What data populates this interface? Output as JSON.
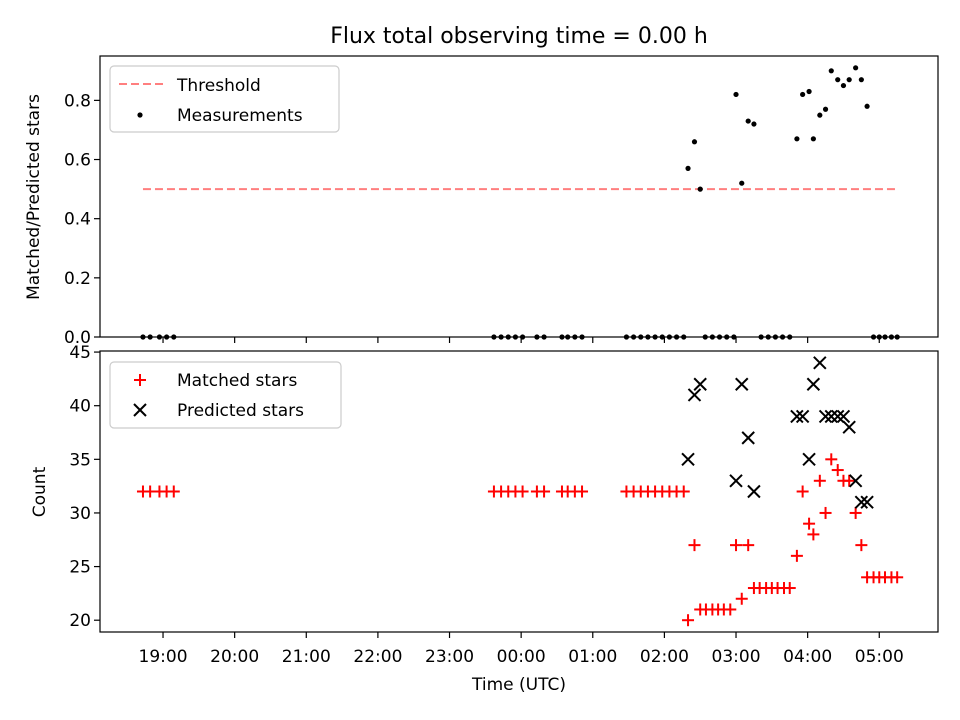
{
  "chart_data": [
    {
      "type": "scatter",
      "title": "Flux total observing time = 0.00 h",
      "xlabel": "",
      "ylabel": "Matched/Predicted stars",
      "xlim_hours": [
        18.12,
        29.82
      ],
      "ylim": [
        0,
        0.95
      ],
      "yticks": [
        0.0,
        0.2,
        0.4,
        0.6,
        0.8
      ],
      "ytick_labels": [
        "0.0",
        "0.2",
        "0.4",
        "0.6",
        "0.8"
      ],
      "grid": false,
      "legend_position": "top-left",
      "threshold": {
        "name": "Threshold",
        "color": "#ff7f7f",
        "style": "dashed",
        "y": 0.5,
        "x_range": [
          18.72,
          29.27
        ]
      },
      "series": [
        {
          "name": "Measurements",
          "color": "#000000",
          "marker": "dot",
          "points": [
            [
              18.72,
              0
            ],
            [
              18.82,
              0
            ],
            [
              18.95,
              0
            ],
            [
              19.05,
              0
            ],
            [
              19.15,
              0
            ],
            [
              23.62,
              0
            ],
            [
              23.72,
              0
            ],
            [
              23.82,
              0
            ],
            [
              23.92,
              0
            ],
            [
              24.02,
              0
            ],
            [
              24.22,
              0
            ],
            [
              24.32,
              0
            ],
            [
              24.57,
              0
            ],
            [
              24.65,
              0
            ],
            [
              24.75,
              0
            ],
            [
              24.85,
              0
            ],
            [
              25.47,
              0
            ],
            [
              25.57,
              0
            ],
            [
              25.67,
              0
            ],
            [
              25.77,
              0
            ],
            [
              25.87,
              0
            ],
            [
              25.97,
              0
            ],
            [
              26.07,
              0
            ],
            [
              26.17,
              0
            ],
            [
              26.27,
              0
            ],
            [
              26.33,
              0.57
            ],
            [
              26.42,
              0.66
            ],
            [
              26.5,
              0.5
            ],
            [
              26.57,
              0
            ],
            [
              26.67,
              0
            ],
            [
              26.77,
              0
            ],
            [
              26.87,
              0
            ],
            [
              26.97,
              0
            ],
            [
              27.0,
              0.82
            ],
            [
              27.08,
              0.52
            ],
            [
              27.17,
              0.73
            ],
            [
              27.25,
              0.72
            ],
            [
              27.35,
              0
            ],
            [
              27.45,
              0
            ],
            [
              27.55,
              0
            ],
            [
              27.65,
              0
            ],
            [
              27.75,
              0
            ],
            [
              27.85,
              0.67
            ],
            [
              27.93,
              0.82
            ],
            [
              28.02,
              0.83
            ],
            [
              28.08,
              0.67
            ],
            [
              28.17,
              0.75
            ],
            [
              28.25,
              0.77
            ],
            [
              28.33,
              0.9
            ],
            [
              28.42,
              0.87
            ],
            [
              28.5,
              0.85
            ],
            [
              28.58,
              0.87
            ],
            [
              28.67,
              0.91
            ],
            [
              28.75,
              0.87
            ],
            [
              28.83,
              0.78
            ],
            [
              28.92,
              0
            ],
            [
              29.0,
              0
            ],
            [
              29.08,
              0
            ],
            [
              29.17,
              0
            ],
            [
              29.25,
              0
            ]
          ]
        }
      ]
    },
    {
      "type": "scatter",
      "title": "",
      "xlabel": "Time (UTC)",
      "ylabel": "Count",
      "xlim_hours": [
        18.12,
        29.82
      ],
      "ylim": [
        18.9,
        45.1
      ],
      "yticks": [
        20,
        25,
        30,
        35,
        40,
        45
      ],
      "ytick_labels": [
        "20",
        "25",
        "30",
        "35",
        "40",
        "45"
      ],
      "xticks_hours": [
        19,
        20,
        21,
        22,
        23,
        24,
        25,
        26,
        27,
        28,
        29
      ],
      "xtick_labels": [
        "19:00",
        "20:00",
        "21:00",
        "22:00",
        "23:00",
        "00:00",
        "01:00",
        "02:00",
        "03:00",
        "04:00",
        "05:00"
      ],
      "grid": false,
      "legend_position": "top-left",
      "series": [
        {
          "name": "Matched stars",
          "color": "#ff0000",
          "marker": "plus",
          "points": [
            [
              18.72,
              32
            ],
            [
              18.82,
              32
            ],
            [
              18.95,
              32
            ],
            [
              19.05,
              32
            ],
            [
              19.15,
              32
            ],
            [
              23.62,
              32
            ],
            [
              23.72,
              32
            ],
            [
              23.82,
              32
            ],
            [
              23.92,
              32
            ],
            [
              24.02,
              32
            ],
            [
              24.22,
              32
            ],
            [
              24.32,
              32
            ],
            [
              24.57,
              32
            ],
            [
              24.65,
              32
            ],
            [
              24.75,
              32
            ],
            [
              24.85,
              32
            ],
            [
              25.47,
              32
            ],
            [
              25.57,
              32
            ],
            [
              25.67,
              32
            ],
            [
              25.77,
              32
            ],
            [
              25.87,
              32
            ],
            [
              25.97,
              32
            ],
            [
              26.07,
              32
            ],
            [
              26.17,
              32
            ],
            [
              26.27,
              32
            ],
            [
              26.33,
              20
            ],
            [
              26.42,
              27
            ],
            [
              26.5,
              21
            ],
            [
              26.58,
              21
            ],
            [
              26.67,
              21
            ],
            [
              26.75,
              21
            ],
            [
              26.83,
              21
            ],
            [
              26.92,
              21
            ],
            [
              27.0,
              27
            ],
            [
              27.08,
              22
            ],
            [
              27.17,
              27
            ],
            [
              27.25,
              23
            ],
            [
              27.33,
              23
            ],
            [
              27.42,
              23
            ],
            [
              27.5,
              23
            ],
            [
              27.58,
              23
            ],
            [
              27.67,
              23
            ],
            [
              27.75,
              23
            ],
            [
              27.85,
              26
            ],
            [
              27.93,
              32
            ],
            [
              28.02,
              29
            ],
            [
              28.08,
              28
            ],
            [
              28.17,
              33
            ],
            [
              28.25,
              30
            ],
            [
              28.33,
              35
            ],
            [
              28.42,
              34
            ],
            [
              28.5,
              33
            ],
            [
              28.58,
              33
            ],
            [
              28.67,
              30
            ],
            [
              28.75,
              27
            ],
            [
              28.83,
              24
            ],
            [
              28.92,
              24
            ],
            [
              29.0,
              24
            ],
            [
              29.08,
              24
            ],
            [
              29.17,
              24
            ],
            [
              29.25,
              24
            ]
          ]
        },
        {
          "name": "Predicted stars",
          "color": "#000000",
          "marker": "x",
          "points": [
            [
              26.33,
              35
            ],
            [
              26.42,
              41
            ],
            [
              26.5,
              42
            ],
            [
              27.0,
              33
            ],
            [
              27.08,
              42
            ],
            [
              27.17,
              37
            ],
            [
              27.25,
              32
            ],
            [
              27.85,
              39
            ],
            [
              27.93,
              39
            ],
            [
              28.02,
              35
            ],
            [
              28.08,
              42
            ],
            [
              28.17,
              44
            ],
            [
              28.25,
              39
            ],
            [
              28.33,
              39
            ],
            [
              28.42,
              39
            ],
            [
              28.5,
              39
            ],
            [
              28.58,
              38
            ],
            [
              28.67,
              33
            ],
            [
              28.75,
              31
            ],
            [
              28.83,
              31
            ]
          ]
        }
      ]
    }
  ]
}
